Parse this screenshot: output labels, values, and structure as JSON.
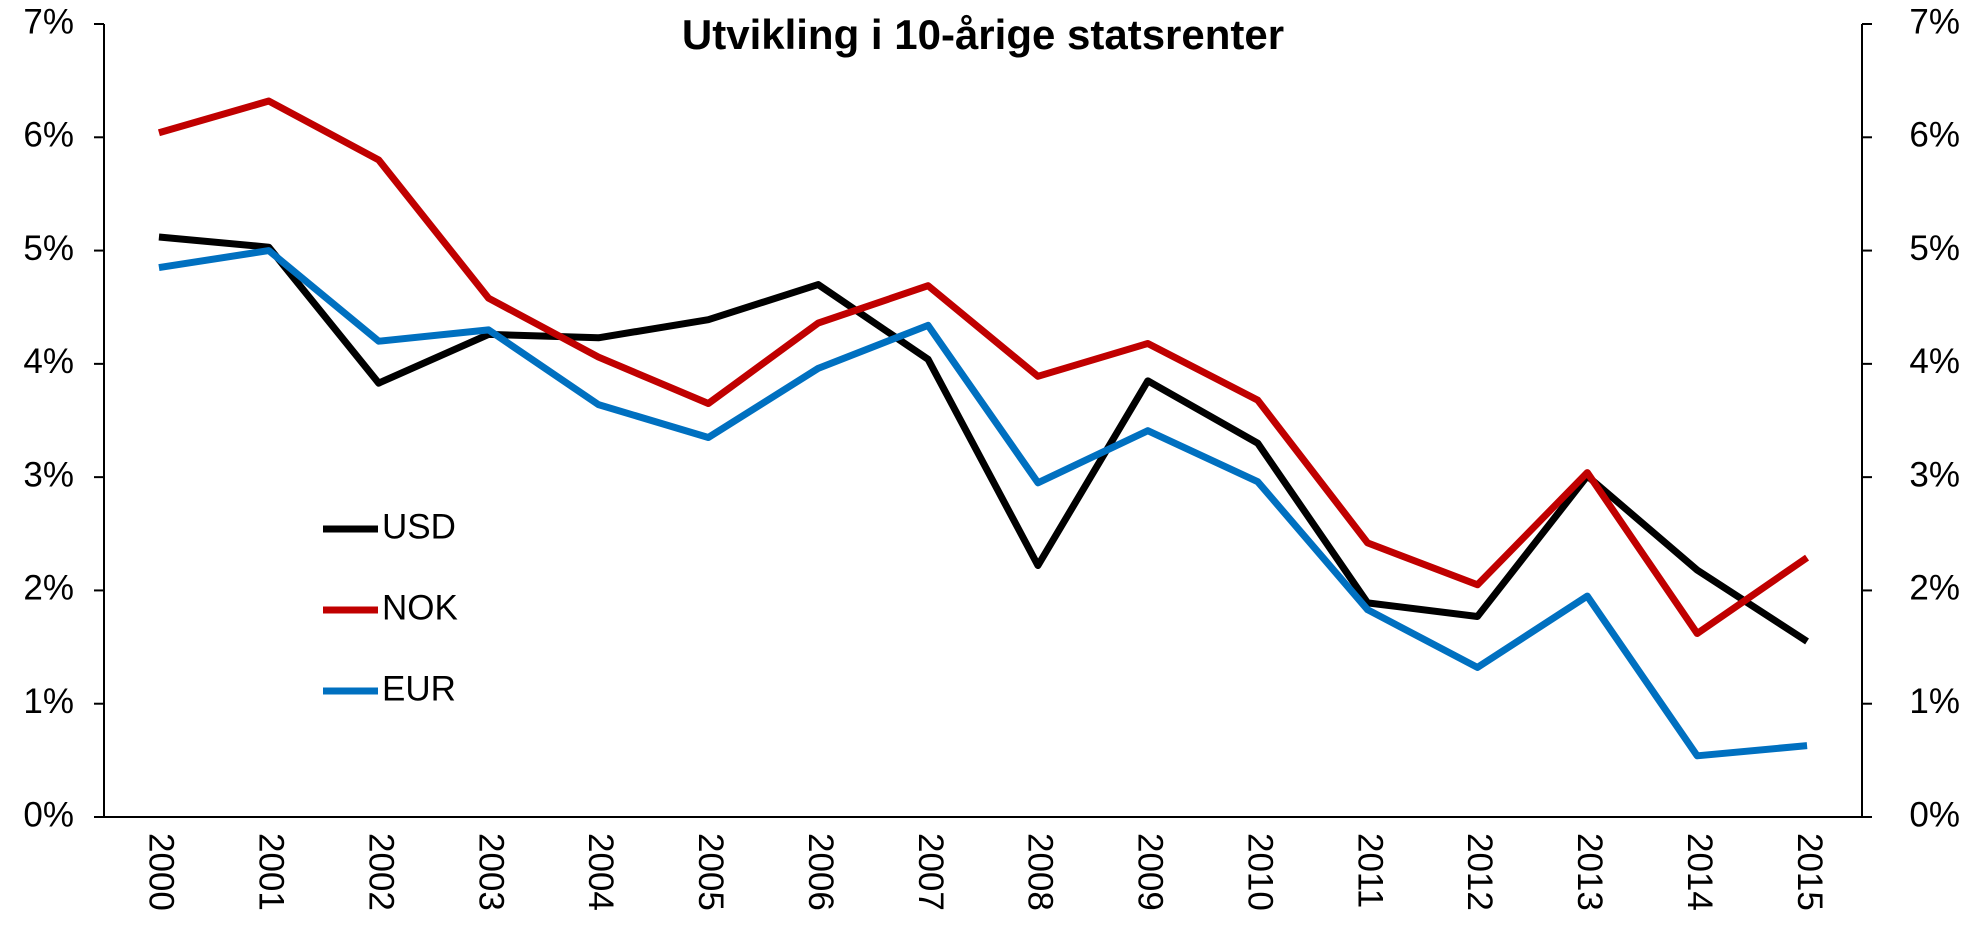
{
  "chart_data": {
    "type": "line",
    "title": "Utvikling i 10-årige statsrenter",
    "categories": [
      "2000",
      "2001",
      "2002",
      "2003",
      "2004",
      "2005",
      "2006",
      "2007",
      "2008",
      "2009",
      "2010",
      "2011",
      "2012",
      "2013",
      "2014",
      "2015"
    ],
    "series": [
      {
        "name": "USD",
        "color": "#000000",
        "values": [
          5.12,
          5.03,
          3.83,
          4.26,
          4.23,
          4.39,
          4.7,
          4.04,
          2.22,
          3.85,
          3.3,
          1.89,
          1.77,
          3.01,
          2.18,
          1.55
        ]
      },
      {
        "name": "NOK",
        "color": "#c00000",
        "values": [
          6.04,
          6.32,
          5.8,
          4.58,
          4.06,
          3.65,
          4.36,
          4.69,
          3.89,
          4.18,
          3.68,
          2.42,
          2.05,
          3.04,
          1.62,
          2.29
        ]
      },
      {
        "name": "EUR",
        "color": "#0070c0",
        "values": [
          4.85,
          5.0,
          4.2,
          4.3,
          3.64,
          3.35,
          3.96,
          4.34,
          2.95,
          3.41,
          2.96,
          1.83,
          1.32,
          1.95,
          0.54,
          0.63
        ]
      }
    ],
    "ylim": [
      0,
      7
    ],
    "yticks": [
      {
        "value": 0,
        "label": "0%"
      },
      {
        "value": 1,
        "label": "1%"
      },
      {
        "value": 2,
        "label": "2%"
      },
      {
        "value": 3,
        "label": "3%"
      },
      {
        "value": 4,
        "label": "4%"
      },
      {
        "value": 5,
        "label": "5%"
      },
      {
        "value": 6,
        "label": "6%"
      },
      {
        "value": 7,
        "label": "7%"
      }
    ],
    "y2lim": [
      0,
      7
    ],
    "y2ticks": [
      {
        "value": 0,
        "label": "0%"
      },
      {
        "value": 1,
        "label": "1%"
      },
      {
        "value": 2,
        "label": "2%"
      },
      {
        "value": 3,
        "label": "3%"
      },
      {
        "value": 4,
        "label": "4%"
      },
      {
        "value": 5,
        "label": "5%"
      },
      {
        "value": 6,
        "label": "6%"
      },
      {
        "value": 7,
        "label": "7%"
      }
    ],
    "grid": false,
    "legend": "left"
  }
}
